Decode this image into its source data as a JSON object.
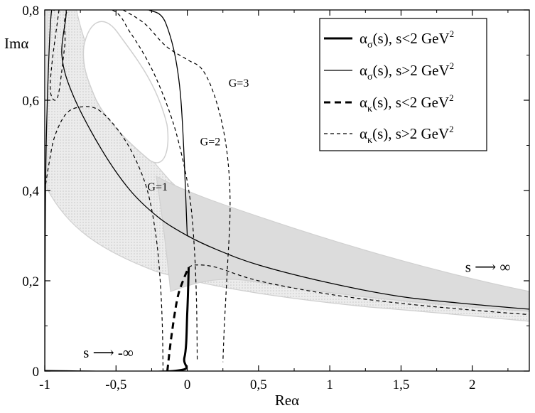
{
  "chart_data": {
    "type": "line",
    "xlabel": "Reα",
    "ylabel": "Imα",
    "xlim": [
      -1.0,
      2.4
    ],
    "ylim": [
      0.0,
      0.8
    ],
    "xticks": [
      -1,
      -0.5,
      0,
      0.5,
      1,
      1.5,
      2
    ],
    "xtick_labels": [
      "-1",
      "-0,5",
      "0",
      "0,5",
      "1",
      "1,5",
      "2"
    ],
    "yticks": [
      0,
      0.2,
      0.4,
      0.6,
      0.8
    ],
    "ytick_labels": [
      "0",
      "0,2",
      "0,4",
      "0,6",
      "0,8"
    ],
    "legend": [
      {
        "base": "α",
        "sub": "σ",
        "rest": "(s), s<2 GeV",
        "sup": "2",
        "style": "thick-solid"
      },
      {
        "base": "α",
        "sub": "σ",
        "rest": "(s), s>2 GeV",
        "sup": "2",
        "style": "thin-solid"
      },
      {
        "base": "α",
        "sub": "κ",
        "rest": "(s), s<2 GeV",
        "sup": "2",
        "style": "thick-dashed"
      },
      {
        "base": "α",
        "sub": "κ",
        "rest": "(s), s>2 GeV",
        "sup": "2",
        "style": "thin-dashed"
      }
    ],
    "annotations": [
      {
        "text": "G=1",
        "x": -0.28,
        "y": 0.4
      },
      {
        "text": "G=2",
        "x": 0.09,
        "y": 0.5
      },
      {
        "text": "G=3",
        "x": 0.29,
        "y": 0.63
      },
      {
        "text": "s ⟶ ∞",
        "x": 1.95,
        "y": 0.22
      },
      {
        "text": "s ⟶ -∞",
        "x": -0.73,
        "y": 0.03
      }
    ],
    "series": [
      {
        "name": "sigma_below_2",
        "style": "thick-solid",
        "points": [
          [
            -1.0,
            0.0
          ],
          [
            -0.1,
            0.0
          ],
          [
            -0.02,
            0.03
          ],
          [
            0.0,
            0.13
          ],
          [
            0.01,
            0.23
          ]
        ]
      },
      {
        "name": "sigma_above_2",
        "style": "thin-solid",
        "points": [
          [
            0.0,
            0.3
          ],
          [
            -0.05,
            0.62
          ],
          [
            -0.15,
            0.77
          ],
          [
            -0.27,
            0.8
          ],
          [
            -0.28,
            0.8
          ]
        ]
      },
      {
        "name": "sigma_above_2_asymptote",
        "style": "thin-solid",
        "points": [
          [
            -1.0,
            0.0
          ],
          [
            -0.998,
            0.2
          ],
          [
            -0.99,
            0.5
          ],
          [
            -0.96,
            0.77
          ],
          [
            -0.93,
            0.8
          ],
          [
            -0.85,
            0.8
          ],
          [
            -0.88,
            0.7
          ],
          [
            -0.8,
            0.61
          ],
          [
            -0.6,
            0.49
          ],
          [
            -0.4,
            0.4
          ],
          [
            -0.2,
            0.34
          ],
          [
            0.0,
            0.3
          ],
          [
            0.2,
            0.27
          ],
          [
            0.5,
            0.235
          ],
          [
            1.0,
            0.195
          ],
          [
            1.5,
            0.165
          ],
          [
            2.0,
            0.148
          ],
          [
            2.4,
            0.137
          ]
        ]
      },
      {
        "name": "kappa_below_2",
        "style": "thick-dashed",
        "points": [
          [
            -0.14,
            0.0
          ],
          [
            -0.11,
            0.08
          ],
          [
            -0.07,
            0.16
          ],
          [
            -0.03,
            0.2
          ],
          [
            0.01,
            0.23
          ]
        ]
      },
      {
        "name": "kappa_above_2",
        "style": "thin-dashed",
        "points": [
          [
            0.01,
            0.23
          ],
          [
            0.06,
            0.235
          ],
          [
            0.2,
            0.23
          ],
          [
            0.5,
            0.2
          ],
          [
            1.0,
            0.17
          ],
          [
            1.5,
            0.15
          ],
          [
            2.0,
            0.135
          ],
          [
            2.4,
            0.125
          ]
        ]
      },
      {
        "name": "kappa_G1",
        "style": "thin-dashed",
        "points": [
          [
            -1.0,
            0.4
          ],
          [
            -0.97,
            0.46
          ],
          [
            -0.93,
            0.52
          ],
          [
            -0.85,
            0.57
          ],
          [
            -0.75,
            0.585
          ],
          [
            -0.63,
            0.58
          ],
          [
            -0.5,
            0.54
          ],
          [
            -0.38,
            0.48
          ],
          [
            -0.28,
            0.4
          ],
          [
            -0.22,
            0.3
          ],
          [
            -0.19,
            0.2
          ],
          [
            -0.175,
            0.1
          ],
          [
            -0.17,
            0.0
          ]
        ]
      },
      {
        "name": "kappa_G2",
        "style": "thin-dashed",
        "points": [
          [
            -0.9,
            0.8
          ],
          [
            -0.95,
            0.68
          ],
          [
            -0.96,
            0.62
          ],
          [
            -0.93,
            0.6
          ],
          [
            -0.9,
            0.62
          ],
          [
            -0.86,
            0.72
          ],
          [
            -0.83,
            0.8
          ],
          [
            -0.53,
            0.8
          ],
          [
            -0.4,
            0.75
          ],
          [
            -0.25,
            0.67
          ],
          [
            -0.12,
            0.57
          ],
          [
            -0.04,
            0.48
          ],
          [
            0.02,
            0.38
          ],
          [
            0.05,
            0.27
          ],
          [
            0.065,
            0.15
          ],
          [
            0.07,
            0.02
          ]
        ]
      },
      {
        "name": "kappa_G3",
        "style": "thin-dashed",
        "points": [
          [
            -0.45,
            0.8
          ],
          [
            -0.3,
            0.77
          ],
          [
            -0.15,
            0.72
          ],
          [
            0.0,
            0.69
          ],
          [
            0.1,
            0.67
          ],
          [
            0.18,
            0.62
          ],
          [
            0.25,
            0.54
          ],
          [
            0.29,
            0.45
          ],
          [
            0.3,
            0.35
          ],
          [
            0.28,
            0.22
          ],
          [
            0.26,
            0.1
          ],
          [
            0.25,
            0.02
          ]
        ]
      }
    ]
  }
}
